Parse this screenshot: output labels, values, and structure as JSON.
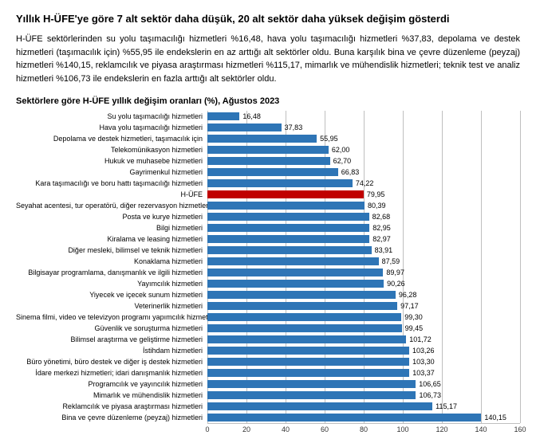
{
  "heading": "Yıllık H-ÜFE'ye göre 7 alt sektör daha düşük, 20 alt sektör daha yüksek değişim gösterdi",
  "paragraph": "H-ÜFE sektörlerinden su yolu taşımacılığı hizmetleri %16,48, hava yolu taşımacılığı hizmetleri %37,83, depolama ve destek hizmetleri (taşımacılık için) %55,95 ile endekslerin en az arttığı alt sektörler oldu. Buna karşılık bina ve çevre düzenleme (peyzaj) hizmetleri %140,15, reklamcılık ve piyasa araştırması hizmetleri %115,17, mimarlık ve mühendislik hizmetleri; teknik test ve analiz hizmetleri %106,73 ile endekslerin en fazla arttığı alt sektörler oldu.",
  "chart": {
    "title": "Sektörlere göre H-ÜFE yıllık değişim oranları (%), Ağustos 2023",
    "type": "bar",
    "xmin": 0,
    "xmax": 160,
    "xtick_step": 20,
    "bar_color": "#2e75b6",
    "highlight_color": "#c00000",
    "grid_color": "#bfbfbf",
    "background_color": "#ffffff",
    "label_fontsize": 9,
    "value_fontsize": 9,
    "items": [
      {
        "label": "Su yolu taşımacılığı hizmetleri",
        "value": 16.48,
        "display": "16,48",
        "highlight": false
      },
      {
        "label": "Hava yolu taşımacılığı hizmetleri",
        "value": 37.83,
        "display": "37,83",
        "highlight": false
      },
      {
        "label": "Depolama ve destek hizmetleri, taşımacılık için",
        "value": 55.95,
        "display": "55,95",
        "highlight": false
      },
      {
        "label": "Telekomünikasyon hizmetleri",
        "value": 62.0,
        "display": "62,00",
        "highlight": false
      },
      {
        "label": "Hukuk ve muhasebe hizmetleri",
        "value": 62.7,
        "display": "62,70",
        "highlight": false
      },
      {
        "label": "Gayrimenkul hizmetleri",
        "value": 66.83,
        "display": "66,83",
        "highlight": false
      },
      {
        "label": "Kara taşımacılığı ve boru hattı taşımacılığı hizmetleri",
        "value": 74.22,
        "display": "74,22",
        "highlight": false
      },
      {
        "label": "H-ÜFE",
        "value": 79.95,
        "display": "79,95",
        "highlight": true
      },
      {
        "label": "Seyahat acentesi, tur operatörü, diğer rezervasyon hizmetleri",
        "value": 80.39,
        "display": "80,39",
        "highlight": false
      },
      {
        "label": "Posta ve kurye hizmetleri",
        "value": 82.68,
        "display": "82,68",
        "highlight": false
      },
      {
        "label": "Bilgi hizmetleri",
        "value": 82.95,
        "display": "82,95",
        "highlight": false
      },
      {
        "label": "Kiralama ve leasing hizmetleri",
        "value": 82.97,
        "display": "82,97",
        "highlight": false
      },
      {
        "label": "Diğer mesleki, bilimsel ve teknik hizmetleri",
        "value": 83.91,
        "display": "83,91",
        "highlight": false
      },
      {
        "label": "Konaklama hizmetleri",
        "value": 87.59,
        "display": "87,59",
        "highlight": false
      },
      {
        "label": "Bilgisayar programlama, danışmanlık ve ilgili hizmetleri",
        "value": 89.97,
        "display": "89,97",
        "highlight": false
      },
      {
        "label": "Yayımcılık hizmetleri",
        "value": 90.26,
        "display": "90,26",
        "highlight": false
      },
      {
        "label": "Yiyecek ve içecek sunum hizmetleri",
        "value": 96.28,
        "display": "96,28",
        "highlight": false
      },
      {
        "label": "Veterinerlik hizmetleri",
        "value": 97.17,
        "display": "97,17",
        "highlight": false
      },
      {
        "label": "Sinema filmi, video ve televizyon programı yapımcılık hizmetleri",
        "value": 99.3,
        "display": "99,30",
        "highlight": false
      },
      {
        "label": "Güvenlik ve soruşturma hizmetleri",
        "value": 99.45,
        "display": "99,45",
        "highlight": false
      },
      {
        "label": "Bilimsel araştırma ve geliştirme hizmetleri",
        "value": 101.72,
        "display": "101,72",
        "highlight": false
      },
      {
        "label": "İstihdam hizmetleri",
        "value": 103.26,
        "display": "103,26",
        "highlight": false
      },
      {
        "label": "Büro yönetimi, büro destek ve diğer iş destek hizmetleri",
        "value": 103.3,
        "display": "103,30",
        "highlight": false
      },
      {
        "label": "İdare merkezi hizmetleri; idari danışmanlık hizmetleri",
        "value": 103.37,
        "display": "103,37",
        "highlight": false
      },
      {
        "label": "Programcılık ve yayıncılık hizmetleri",
        "value": 106.65,
        "display": "106,65",
        "highlight": false
      },
      {
        "label": "Mimarlık ve mühendislik hizmetleri",
        "value": 106.73,
        "display": "106,73",
        "highlight": false
      },
      {
        "label": "Reklamcılık ve piyasa araştırması hizmetleri",
        "value": 115.17,
        "display": "115,17",
        "highlight": false
      },
      {
        "label": "Bina ve çevre düzenleme (peyzaj) hizmetleri",
        "value": 140.15,
        "display": "140,15",
        "highlight": false
      }
    ]
  }
}
